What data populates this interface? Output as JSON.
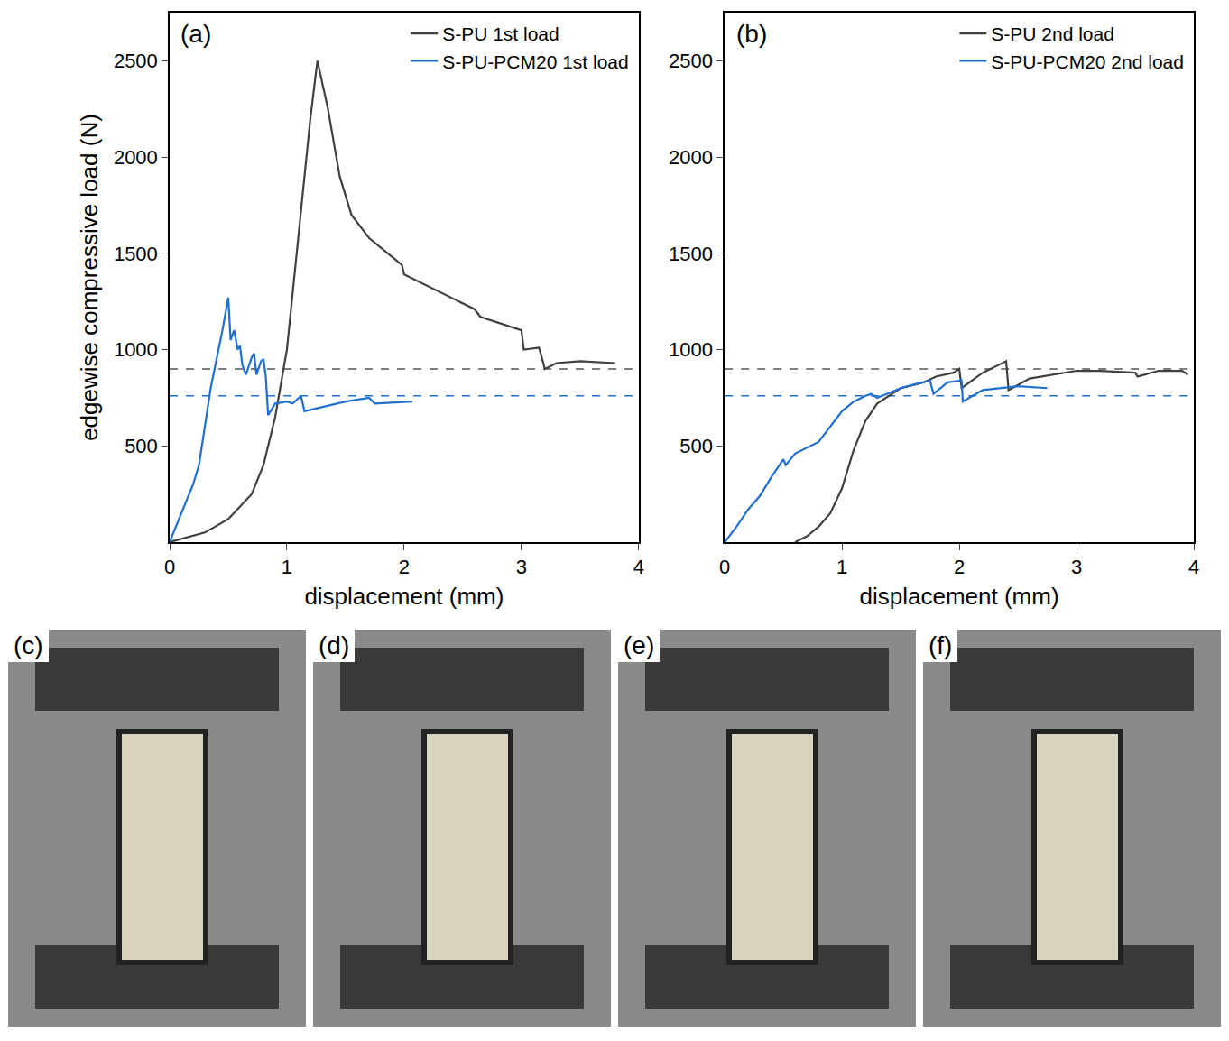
{
  "chart_data": [
    {
      "type": "line",
      "title": "(a)",
      "x_label": "displacement (mm)",
      "y_label": "edgewise compressive load (N)",
      "xlim": [
        0,
        4
      ],
      "xticks": [
        0,
        1,
        2,
        3,
        4
      ],
      "ylim": [
        0,
        2750
      ],
      "yticks": [
        500,
        1000,
        1500,
        2000,
        2500
      ],
      "legend": "upper right",
      "hlines": [
        {
          "value": 900,
          "color": "#555555",
          "line_style": "dash"
        },
        {
          "value": 760,
          "color": "#1f6fd1",
          "line_style": "dash"
        }
      ],
      "series": [
        {
          "name": "S-PU 1st load",
          "color": "#404040",
          "x": [
            0,
            0.3,
            0.5,
            0.7,
            0.8,
            0.9,
            1.0,
            1.1,
            1.2,
            1.26,
            1.35,
            1.45,
            1.55,
            1.7,
            1.9,
            1.98,
            2.0,
            2.2,
            2.4,
            2.6,
            2.65,
            2.8,
            3.0,
            3.02,
            3.15,
            3.2,
            3.3,
            3.5,
            3.8
          ],
          "values": [
            0,
            50,
            120,
            250,
            400,
            650,
            1000,
            1600,
            2200,
            2500,
            2250,
            1900,
            1700,
            1580,
            1480,
            1440,
            1390,
            1330,
            1270,
            1210,
            1170,
            1140,
            1100,
            1000,
            1010,
            900,
            930,
            940,
            930
          ]
        },
        {
          "name": "S-PU-PCM20 1st load",
          "color": "#1f6fd1",
          "x": [
            0,
            0.1,
            0.2,
            0.25,
            0.3,
            0.35,
            0.4,
            0.45,
            0.5,
            0.52,
            0.55,
            0.58,
            0.6,
            0.62,
            0.65,
            0.7,
            0.72,
            0.74,
            0.78,
            0.8,
            0.82,
            0.84,
            0.9,
            1.0,
            1.05,
            1.12,
            1.15,
            1.3,
            1.5,
            1.7,
            1.75,
            2.07
          ],
          "values": [
            0,
            150,
            300,
            400,
            600,
            800,
            950,
            1100,
            1270,
            1050,
            1100,
            1000,
            1020,
            920,
            870,
            960,
            980,
            870,
            940,
            950,
            860,
            660,
            720,
            730,
            720,
            760,
            680,
            700,
            730,
            750,
            720,
            730
          ]
        }
      ]
    },
    {
      "type": "line",
      "title": "(b)",
      "x_label": "displacement (mm)",
      "xlim": [
        0,
        4
      ],
      "xticks": [
        0,
        1,
        2,
        3,
        4
      ],
      "ylim": [
        0,
        2750
      ],
      "yticks": [
        500,
        1000,
        1500,
        2000,
        2500
      ],
      "legend": "upper right",
      "hlines": [
        {
          "value": 900,
          "color": "#555555",
          "line_style": "dash"
        },
        {
          "value": 760,
          "color": "#1f6fd1",
          "line_style": "dash"
        }
      ],
      "series": [
        {
          "name": "S-PU 2nd load",
          "color": "#404040",
          "x": [
            0.6,
            0.7,
            0.8,
            0.9,
            1.0,
            1.1,
            1.2,
            1.3,
            1.5,
            1.7,
            1.8,
            1.95,
            2.0,
            2.02,
            2.2,
            2.4,
            2.42,
            2.6,
            3.0,
            3.2,
            3.5,
            3.52,
            3.7,
            3.9,
            3.95
          ],
          "values": [
            0,
            30,
            80,
            150,
            280,
            480,
            630,
            720,
            800,
            830,
            860,
            880,
            900,
            800,
            880,
            940,
            790,
            850,
            890,
            890,
            880,
            860,
            890,
            890,
            870
          ]
        },
        {
          "name": "S-PU-PCM20 2nd load",
          "color": "#1f6fd1",
          "x": [
            0,
            0.1,
            0.2,
            0.3,
            0.4,
            0.5,
            0.52,
            0.6,
            0.8,
            0.9,
            1.0,
            1.1,
            1.2,
            1.25,
            1.3,
            1.5,
            1.75,
            1.78,
            1.9,
            2.02,
            2.03,
            2.2,
            2.5,
            2.75
          ],
          "values": [
            0,
            80,
            170,
            240,
            340,
            430,
            400,
            460,
            520,
            600,
            680,
            730,
            760,
            770,
            750,
            800,
            840,
            770,
            830,
            840,
            730,
            790,
            810,
            800
          ]
        }
      ]
    }
  ],
  "images": {
    "labels": [
      "(c)",
      "(d)",
      "(e)",
      "(f)"
    ]
  }
}
